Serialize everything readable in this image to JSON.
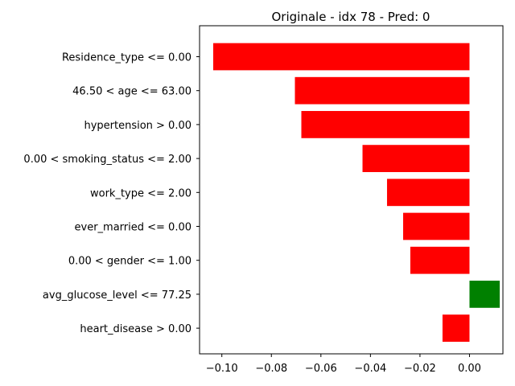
{
  "chart_data": {
    "type": "bar",
    "orientation": "horizontal",
    "title": "Originale - idx 78 - Pred: 0",
    "xlabel": "",
    "ylabel": "",
    "xlim": [
      -0.109,
      0.0135
    ],
    "grid": false,
    "xticks": [
      -0.1,
      -0.08,
      -0.06,
      -0.04,
      -0.02,
      0.0
    ],
    "xtick_labels": [
      "−0.10",
      "−0.08",
      "−0.06",
      "−0.04",
      "−0.02",
      "0.00"
    ],
    "categories": [
      "Residence_type <= 0.00",
      "46.50 < age <= 63.00",
      "hypertension > 0.00",
      "0.00 < smoking_status <= 2.00",
      "work_type <= 2.00",
      "ever_married <= 0.00",
      "0.00 < gender <= 1.00",
      "avg_glucose_level <= 77.25",
      "heart_disease > 0.00"
    ],
    "values": [
      -0.1035,
      -0.0705,
      -0.0679,
      -0.0432,
      -0.0333,
      -0.0268,
      -0.0239,
      0.0122,
      -0.0109
    ],
    "colors": {
      "negative": "#ff0000",
      "positive": "#008000"
    }
  }
}
